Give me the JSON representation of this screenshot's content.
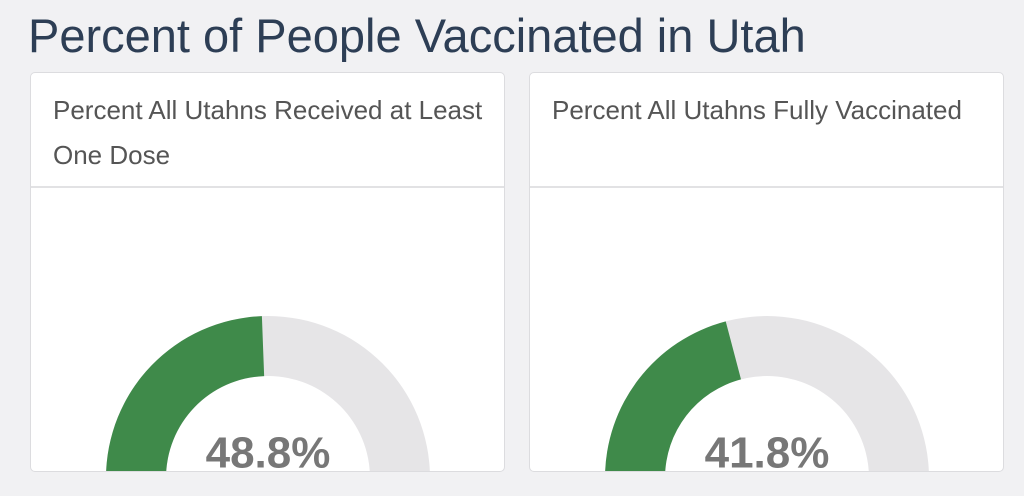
{
  "title": "Percent of People Vaccinated in Utah",
  "chart_data": [
    {
      "type": "gauge",
      "title": "Percent All Utahns Received at Least One Dose",
      "values": [
        48.8
      ],
      "value_labels": [
        "48.8%"
      ],
      "color": "#3f8a4a",
      "track_color": "#e6e5e7",
      "ylim": [
        0,
        100
      ],
      "yticks": [
        0,
        100
      ]
    },
    {
      "type": "gauge",
      "title": "Percent All Utahns Fully Vaccinated",
      "values": [
        41.8
      ],
      "value_labels": [
        "41.8%"
      ],
      "color": "#3f8a4a",
      "track_color": "#e6e5e7",
      "ylim": [
        0,
        100
      ],
      "yticks": [
        0,
        100
      ]
    }
  ]
}
